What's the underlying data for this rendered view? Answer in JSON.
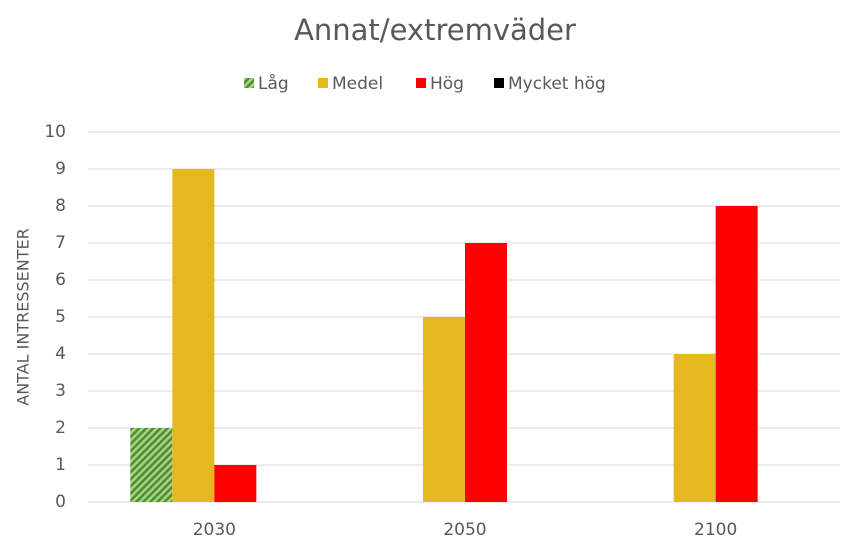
{
  "chart_data": {
    "type": "bar",
    "title": "Annat/extremväder",
    "y_label": "ANTAL INTRESSENTER",
    "categories": [
      "2030",
      "2050",
      "2100"
    ],
    "series": [
      {
        "name": "Låg",
        "color": "#5a9e2f",
        "hatch": true,
        "values": [
          2,
          0,
          0
        ]
      },
      {
        "name": "Medel",
        "color": "#e6b820",
        "values": [
          9,
          5,
          4
        ]
      },
      {
        "name": "Hög",
        "color": "#ff0000",
        "values": [
          1,
          7,
          8
        ]
      },
      {
        "name": "Mycket hög",
        "color": "#000000",
        "values": [
          0,
          0,
          0
        ]
      }
    ],
    "ylim": [
      0,
      10
    ],
    "yticks": [
      0,
      1,
      2,
      3,
      4,
      5,
      6,
      7,
      8,
      9,
      10
    ],
    "grid": true,
    "legend": "top"
  }
}
